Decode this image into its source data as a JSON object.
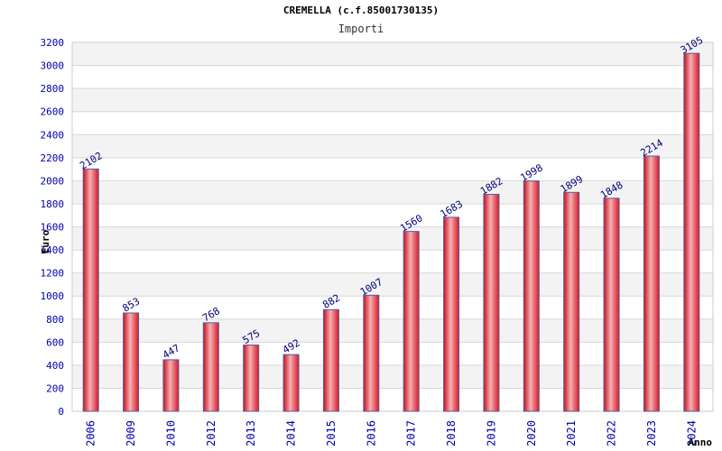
{
  "chart_data": {
    "type": "bar",
    "title": "CREMELLA (c.f.85001730135)",
    "subtitle": "Importi",
    "ylabel": "Euro",
    "xlabel": "Anno",
    "categories": [
      "2006",
      "2009",
      "2010",
      "2012",
      "2013",
      "2014",
      "2015",
      "2016",
      "2017",
      "2018",
      "2019",
      "2020",
      "2021",
      "2022",
      "2023",
      "2024"
    ],
    "values": [
      2102,
      853,
      447,
      768,
      575,
      492,
      882,
      1007,
      1560,
      1683,
      1882,
      1998,
      1899,
      1848,
      2214,
      3105
    ],
    "ylim": [
      0,
      3200
    ],
    "yticks": [
      0,
      200,
      400,
      600,
      800,
      1000,
      1200,
      1400,
      1600,
      1800,
      2000,
      2200,
      2400,
      2600,
      2800,
      3000,
      3200
    ],
    "grid": true,
    "colors": {
      "bar": "#e8202a",
      "bar_highlight": "#f4a8ac",
      "bar_edge": "#5a5aa0",
      "band": "#f3f3f3",
      "grid": "#d8d8d8"
    }
  }
}
